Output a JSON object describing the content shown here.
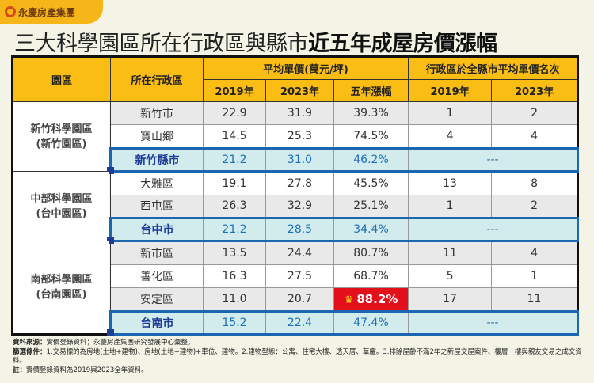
{
  "logo": "永慶房產集團",
  "title": {
    "normal": "三大科學園區所在行政區與縣市",
    "bold": "近五年成屋房價漲幅"
  },
  "headers": {
    "park": "園區",
    "district": "所在行政區",
    "price_group": "平均單價(萬元/坪)",
    "rank_group": "行政區於全縣市平均單價名次",
    "y2019": "2019年",
    "y2023": "2023年",
    "growth": "五年漲幅",
    "r2019": "2019年",
    "r2023": "2023年"
  },
  "groups": [
    {
      "park": [
        "新竹科學園區",
        "(新竹園區)"
      ],
      "rows": [
        {
          "name": "新竹市",
          "p2019": "22.9",
          "p2023": "31.9",
          "growth": "39.3%",
          "r2019": "1",
          "r2023": "2"
        },
        {
          "name": "寶山鄉",
          "p2019": "14.5",
          "p2023": "25.3",
          "growth": "74.5%",
          "r2019": "4",
          "r2023": "4"
        },
        {
          "name": "新竹縣市",
          "p2019": "21.2",
          "p2023": "31.0",
          "growth": "46.2%",
          "rank": "---"
        }
      ]
    },
    {
      "park": [
        "中部科學園區",
        "(台中園區)"
      ],
      "rows": [
        {
          "name": "大雅區",
          "p2019": "19.1",
          "p2023": "27.8",
          "growth": "45.5%",
          "r2019": "13",
          "r2023": "8"
        },
        {
          "name": "西屯區",
          "p2019": "26.3",
          "p2023": "32.9",
          "growth": "25.1%",
          "r2019": "1",
          "r2023": "2"
        },
        {
          "name": "台中市",
          "p2019": "21.2",
          "p2023": "28.5",
          "growth": "34.4%",
          "rank": "---"
        }
      ]
    },
    {
      "park": [
        "南部科學園區",
        "(台南園區)"
      ],
      "rows": [
        {
          "name": "新市區",
          "p2019": "13.5",
          "p2023": "24.4",
          "growth": "80.7%",
          "r2019": "11",
          "r2023": "4"
        },
        {
          "name": "善化區",
          "p2019": "16.3",
          "p2023": "27.5",
          "growth": "68.7%",
          "r2019": "5",
          "r2023": "1"
        },
        {
          "name": "安定區",
          "p2019": "11.0",
          "p2023": "20.7",
          "growth": "88.2%",
          "r2019": "17",
          "r2023": "11"
        },
        {
          "name": "台南市",
          "p2019": "15.2",
          "p2023": "22.4",
          "growth": "47.4%",
          "rank": "---"
        }
      ]
    }
  ],
  "highlight_icon": "crown-icon",
  "notes": {
    "source_label": "資料來源：",
    "source": "實價登錄資料；永慶房產集團研究發展中心彙整。",
    "filter_label": "篩選條件：",
    "filter": "1.交易標的為房地(土地+建物)、房地(土地+建物)+車位、建物。2.建物型態：公寓、住宅大樓、透天厝、華廈。3.排除屋齡不滿2年之新屋交屋案件、樓層一樓與親友交易之成交資料。",
    "note_label": "註：",
    "note": "實價登錄資料為2019與2023全年資料。"
  },
  "colors": {
    "header": "#f9bd14",
    "county_row": "#d2ecee",
    "county_border": "#1a66b0",
    "highlight": "#e30f1a"
  }
}
